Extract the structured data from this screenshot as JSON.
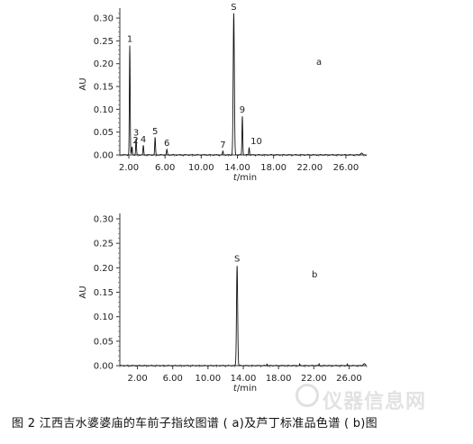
{
  "figure": {
    "caption": "图 2   江西吉水婆婆庙的车前子指纹图谱 ( a)及芦丁标准品色谱 ( b)图",
    "watermark": "仪器信息网"
  },
  "chart_data": [
    {
      "type": "line",
      "panel_label": "a",
      "ylabel": "AU",
      "xlabel": "t/min",
      "xlabel_italic": "t",
      "xlabel_rest": "/min",
      "xlim": [
        1.0,
        28.3
      ],
      "ylim": [
        0.0,
        0.31
      ],
      "xticks": [
        2,
        6,
        10,
        14,
        18,
        22,
        26
      ],
      "xtick_labels": [
        "2.00",
        "6.00",
        "10.00",
        "14.00",
        "18.00",
        "22.00",
        "26.00"
      ],
      "yticks": [
        0,
        0.05,
        0.1,
        0.15,
        0.2,
        0.25,
        0.3
      ],
      "ytick_labels": [
        "0.00",
        "0.05",
        "0.10",
        "0.15",
        "0.20",
        "0.25",
        "0.30"
      ],
      "grid": false,
      "peaks": [
        {
          "label": "1",
          "x": 2.1,
          "y": 0.24
        },
        {
          "label": "2",
          "x": 2.35,
          "y": 0.018
        },
        {
          "label": "3",
          "x": 2.8,
          "y": 0.035
        },
        {
          "label": "4",
          "x": 3.6,
          "y": 0.02
        },
        {
          "label": "5",
          "x": 4.9,
          "y": 0.038
        },
        {
          "label": "6",
          "x": 6.2,
          "y": 0.012
        },
        {
          "label": "7",
          "x": 12.4,
          "y": 0.008
        },
        {
          "label": "S",
          "x": 13.6,
          "y": 0.31
        },
        {
          "label": "9",
          "x": 14.55,
          "y": 0.085
        },
        {
          "label": "10",
          "x": 15.3,
          "y": 0.016
        }
      ]
    },
    {
      "type": "line",
      "panel_label": "b",
      "ylabel": "AU",
      "xlabel": "t/min",
      "xlabel_italic": "t",
      "xlabel_rest": "/min",
      "xlim": [
        0.0,
        28.0
      ],
      "ylim": [
        0.0,
        0.3
      ],
      "xticks": [
        2,
        6,
        10,
        14,
        18,
        22,
        26
      ],
      "xtick_labels": [
        "2.00",
        "6.00",
        "10.00",
        "14.00",
        "18.00",
        "22.00",
        "26.00"
      ],
      "yticks": [
        0,
        0.05,
        0.1,
        0.15,
        0.2,
        0.25,
        0.3
      ],
      "ytick_labels": [
        "0.00",
        "0.05",
        "0.10",
        "0.15",
        "0.20",
        "0.25",
        "0.30"
      ],
      "grid": false,
      "peaks": [
        {
          "label": "S",
          "x": 13.3,
          "y": 0.205
        }
      ]
    }
  ]
}
